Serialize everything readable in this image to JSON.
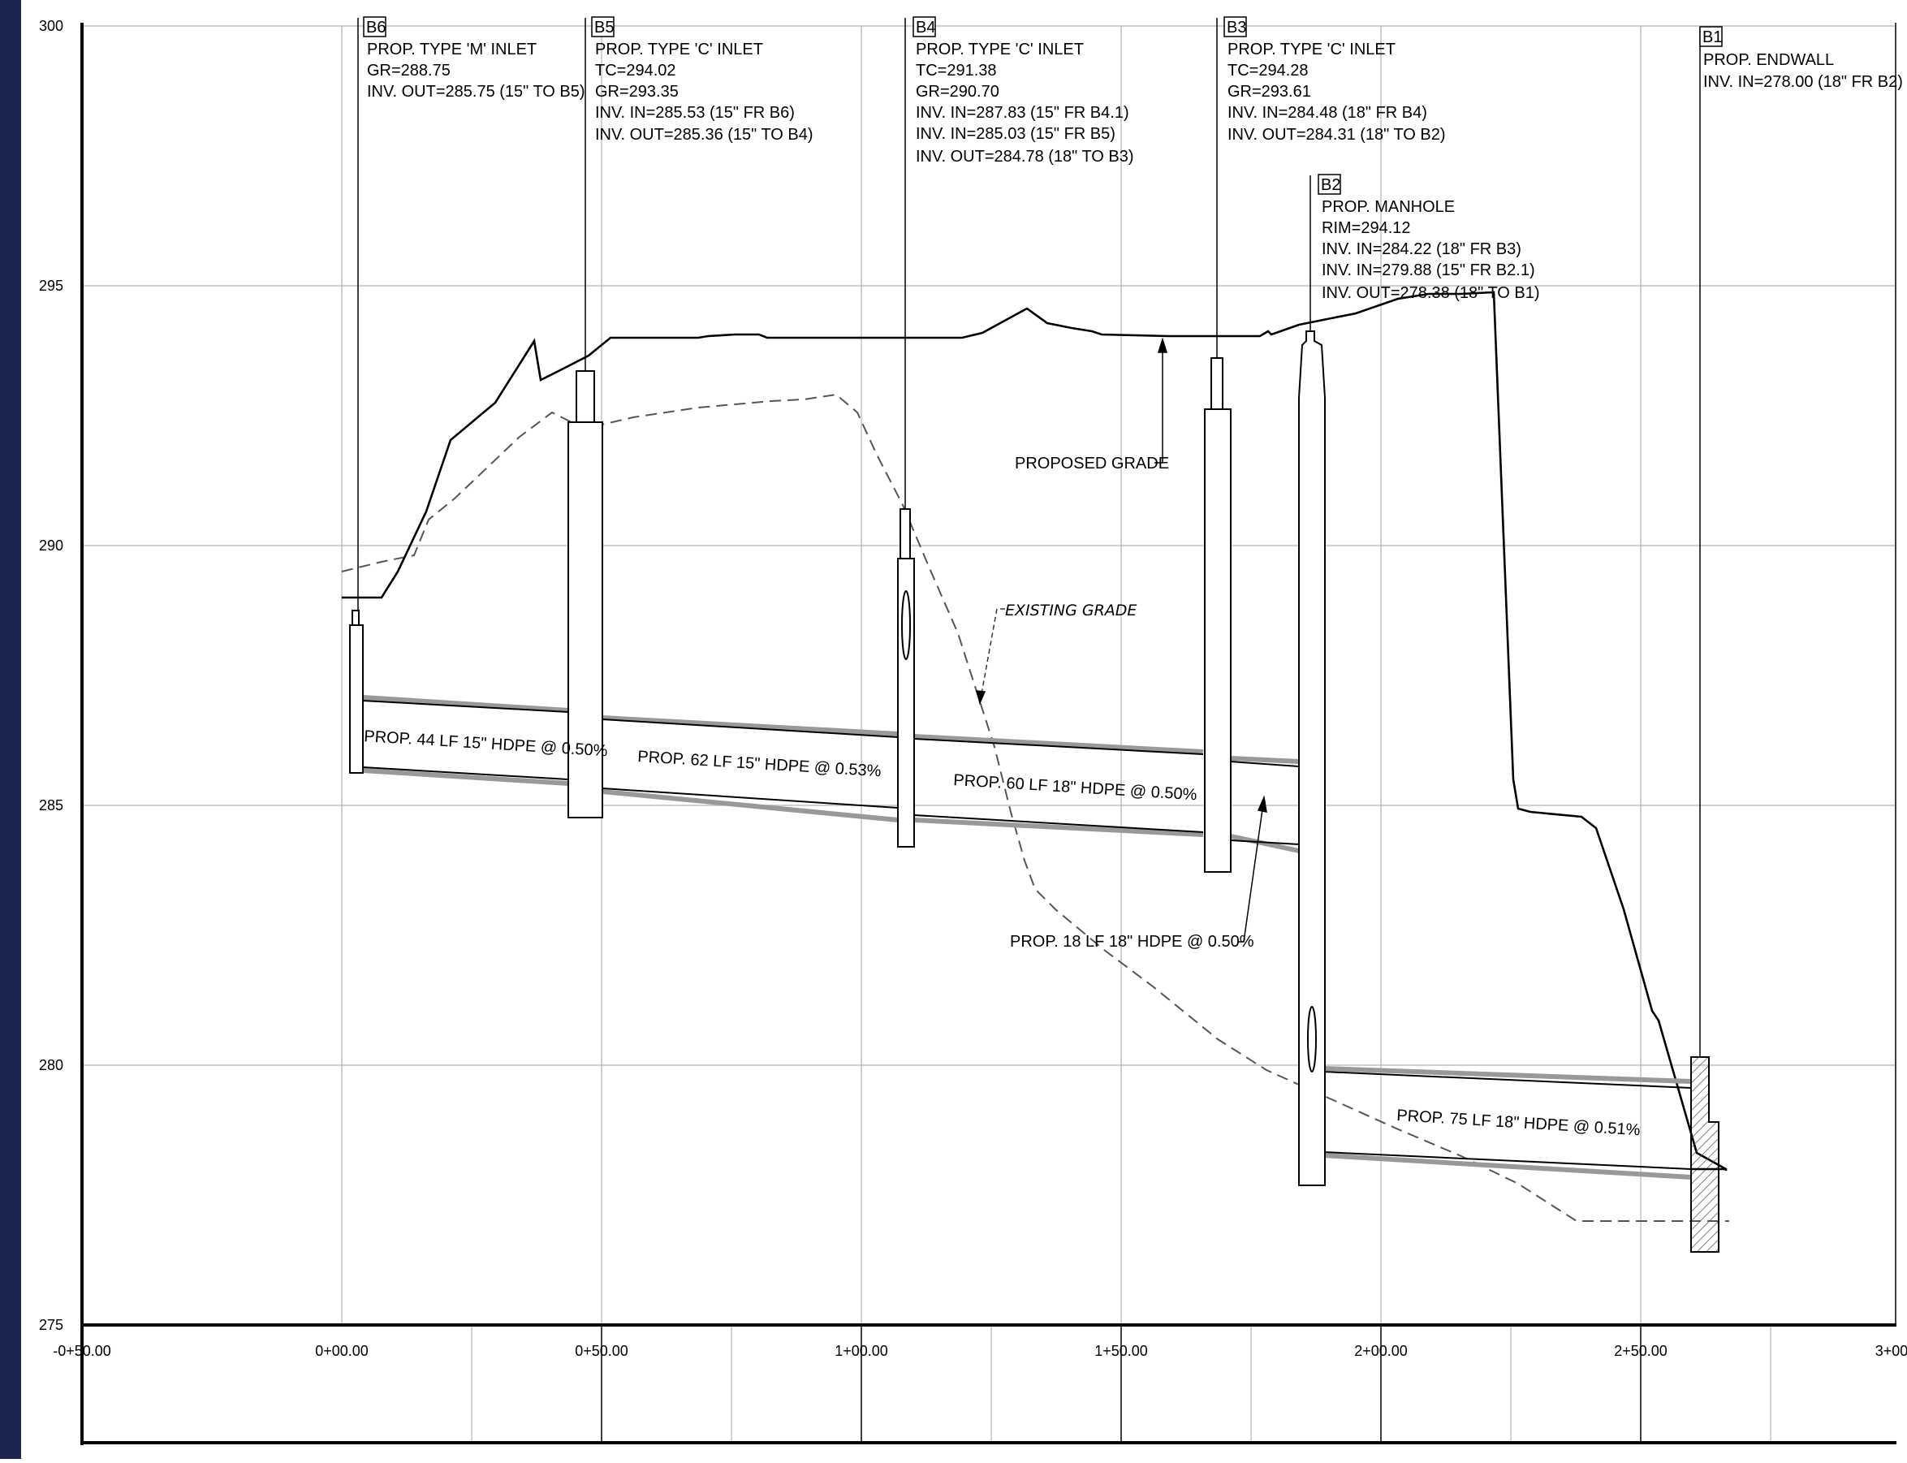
{
  "y_ticks": [
    "300",
    "295",
    "290",
    "285",
    "280",
    "275"
  ],
  "x_ticks": [
    "-0+50.00",
    "0+00.00",
    "0+50.00",
    "1+00.00",
    "1+50.00",
    "2+00.00",
    "2+50.00",
    "3+00"
  ],
  "structures": {
    "b6": {
      "tag": "B6",
      "lines": [
        "PROP. TYPE 'M' INLET",
        "GR=288.75",
        "INV. OUT=285.75 (15\" TO B5)"
      ]
    },
    "b5": {
      "tag": "B5",
      "lines": [
        "PROP. TYPE 'C' INLET",
        "TC=294.02",
        "GR=293.35",
        "INV. IN=285.53 (15\" FR B6)",
        "INV. OUT=285.36 (15\" TO B4)"
      ]
    },
    "b4": {
      "tag": "B4",
      "lines": [
        "PROP. TYPE 'C' INLET",
        "TC=291.38",
        "GR=290.70",
        "INV. IN=287.83 (15\" FR B4.1)",
        "INV. IN=285.03 (15\" FR B5)",
        "INV. OUT=284.78 (18\" TO B3)"
      ]
    },
    "b3": {
      "tag": "B3",
      "lines": [
        "PROP. TYPE 'C' INLET",
        "TC=294.28",
        "GR=293.61",
        "INV. IN=284.48 (18\" FR B4)",
        "INV. OUT=284.31 (18\" TO B2)"
      ]
    },
    "b2": {
      "tag": "B2",
      "lines": [
        "PROP. MANHOLE",
        "RIM=294.12",
        "INV. IN=284.22 (18\" FR B3)",
        "INV. IN=279.88 (15\" FR B2.1)",
        "INV. OUT=278.38 (18\" TO B1)"
      ]
    },
    "b1": {
      "tag": "B1",
      "lines": [
        "PROP. ENDWALL",
        "INV. IN=278.00 (18\" FR B2)"
      ]
    }
  },
  "pipes": {
    "p1": "PROP. 44 LF 15\" HDPE @ 0.50%",
    "p2": "PROP. 62 LF 15\" HDPE @ 0.53%",
    "p3": "PROP. 60 LF 18\" HDPE @ 0.50%",
    "p4": "PROP. 18 LF 18\" HDPE @ 0.50%",
    "p5": "PROP. 75 LF 18\" HDPE @ 0.51%"
  },
  "annotations": {
    "proposed_grade": "PROPOSED GRADE",
    "existing_grade": "EXISTING GRADE"
  },
  "colors": {
    "left_border": "#1b2550",
    "grid": "#b4b4b4",
    "line": "#000000",
    "existing_grade": "#555555"
  }
}
